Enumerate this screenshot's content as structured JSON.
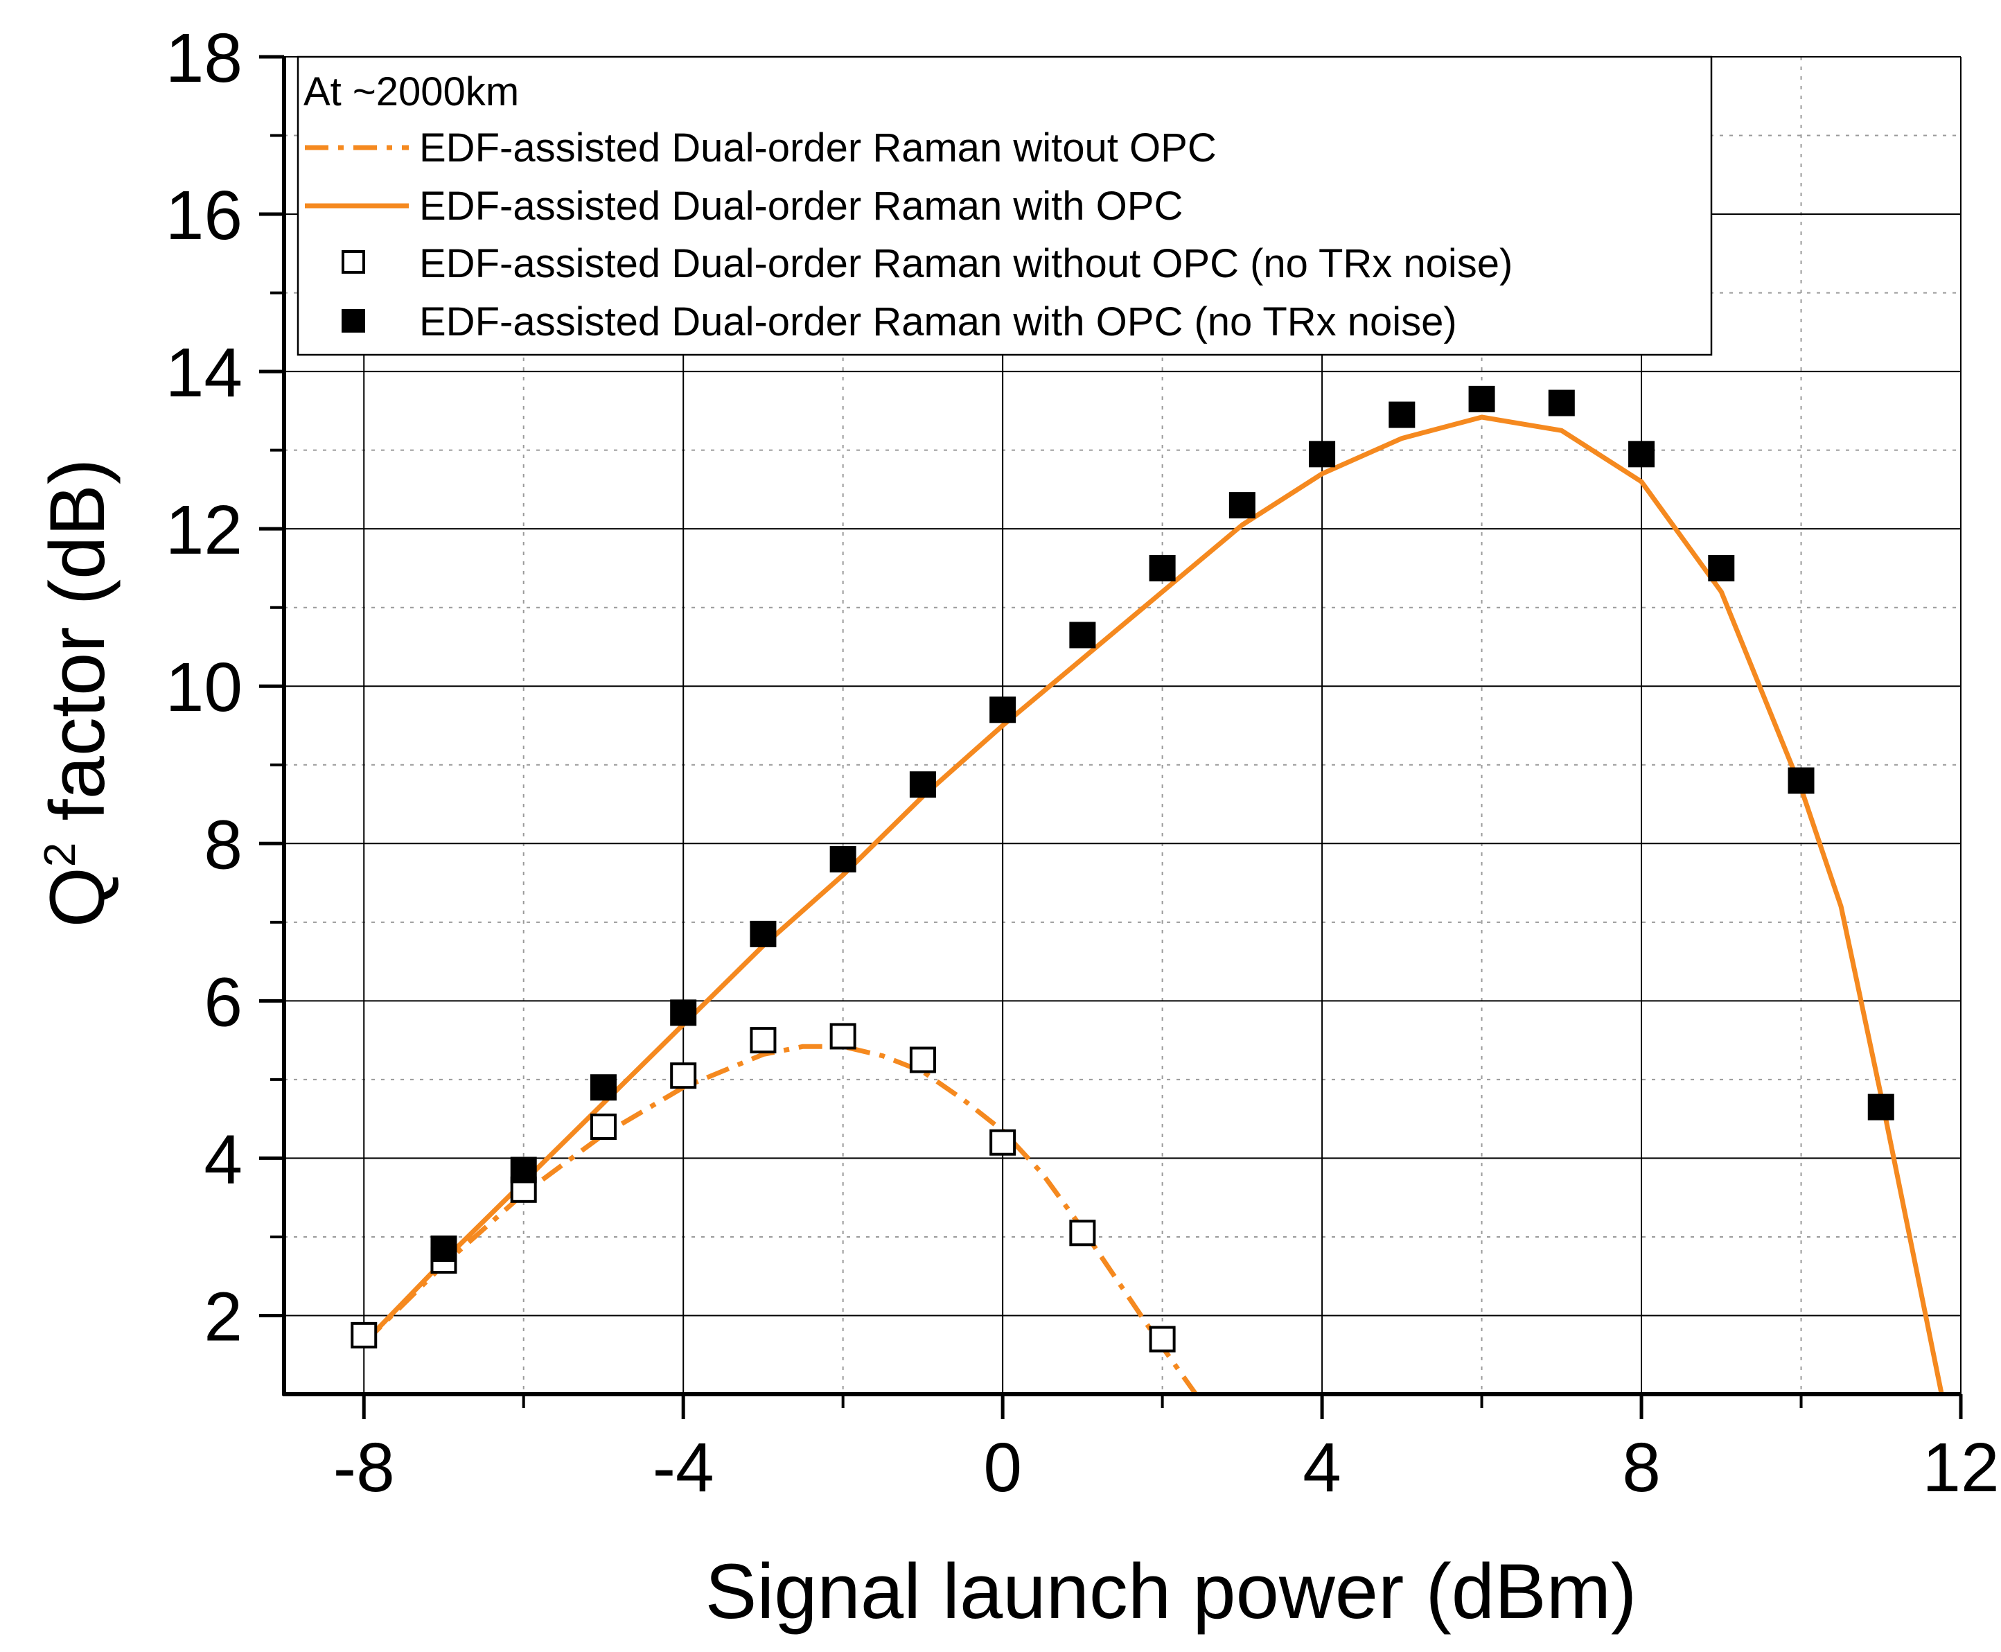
{
  "chart_data": {
    "type": "line",
    "title": "",
    "xlabel": "Signal launch power (dBm)",
    "ylabel_main": "Q",
    "ylabel_sup": "2",
    "ylabel_rest": " factor (dB)",
    "xlim": [
      -9,
      12
    ],
    "ylim": [
      1,
      18
    ],
    "xticks": [
      -8,
      -4,
      0,
      4,
      8,
      12
    ],
    "yticks": [
      2,
      4,
      6,
      8,
      10,
      12,
      14,
      16,
      18
    ],
    "grid": true,
    "legend_position": "top-left",
    "legend_header": "At ~2000km",
    "line_color": "#f5891f",
    "series": [
      {
        "name": "EDF-assisted Dual-order Raman witout OPC",
        "style": "dash-dot-line",
        "x": [
          -8,
          -7,
          -6,
          -5,
          -4,
          -3,
          -2.5,
          -2,
          -1.5,
          -1,
          -0.5,
          0,
          0.5,
          1,
          1.5,
          2,
          2.42
        ],
        "y": [
          1.65,
          2.65,
          3.55,
          4.3,
          4.9,
          5.32,
          5.42,
          5.42,
          5.3,
          5.1,
          4.75,
          4.35,
          3.8,
          3.1,
          2.35,
          1.6,
          1.0
        ]
      },
      {
        "name": "EDF-assisted Dual-order Raman with OPC",
        "style": "solid-line",
        "x": [
          -8,
          -7,
          -6,
          -5,
          -4,
          -3,
          -2,
          -1,
          0,
          1,
          2,
          3,
          4,
          5,
          6,
          7,
          8,
          9,
          10,
          10.5,
          11,
          11.4,
          11.76
        ],
        "y": [
          1.65,
          2.7,
          3.7,
          4.7,
          5.7,
          6.7,
          7.6,
          8.6,
          9.5,
          10.35,
          11.2,
          12.05,
          12.7,
          13.15,
          13.42,
          13.25,
          12.6,
          11.2,
          8.7,
          7.2,
          4.8,
          2.8,
          1.0
        ]
      },
      {
        "name": "EDF-assisted Dual-order Raman without OPC (no TRx noise)",
        "style": "open-square-marker",
        "x": [
          -8,
          -7,
          -6,
          -5,
          -4,
          -3,
          -2,
          -1,
          0,
          1,
          2
        ],
        "y": [
          1.75,
          2.7,
          3.6,
          4.4,
          5.05,
          5.5,
          5.55,
          5.25,
          4.2,
          3.05,
          1.7
        ]
      },
      {
        "name": "EDF-assisted Dual-order Raman with OPC (no TRx noise)",
        "style": "filled-square-marker",
        "x": [
          -7,
          -6,
          -5,
          -4,
          -3,
          -2,
          -1,
          0,
          1,
          2,
          3,
          4,
          5,
          6,
          7,
          8,
          9,
          10,
          11
        ],
        "y": [
          2.85,
          3.85,
          4.9,
          5.85,
          6.85,
          7.8,
          8.75,
          9.7,
          10.65,
          11.5,
          12.3,
          12.95,
          13.45,
          13.65,
          13.6,
          12.95,
          11.5,
          8.8,
          4.65
        ]
      }
    ]
  }
}
